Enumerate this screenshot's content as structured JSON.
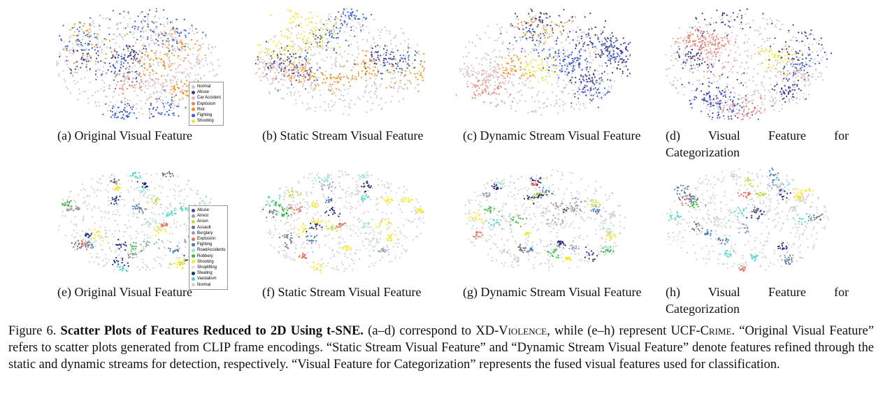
{
  "rows": [
    {
      "legend": [
        {
          "name": "Normal",
          "color": "#c8c8c8"
        },
        {
          "name": "Abuse",
          "color": "#3b3b8f"
        },
        {
          "name": "Car Accident",
          "color": "#e8b8b8"
        },
        {
          "name": "Explosion",
          "color": "#f07f70"
        },
        {
          "name": "Riot",
          "color": "#f5901a"
        },
        {
          "name": "Fighting",
          "color": "#3a5fd0"
        },
        {
          "name": "Shooting",
          "color": "#f5e51c"
        }
      ],
      "panels": [
        "(a) Original Visual Feature",
        "(b) Static Stream Visual Feature",
        "(c) Dynamic Stream Visual Feature",
        "(d) Visual Feature for Categorization"
      ]
    },
    {
      "legend": [
        {
          "name": "Abuse",
          "color": "#3b4a9a"
        },
        {
          "name": "Arrest",
          "color": "#9a9a9a"
        },
        {
          "name": "Arson",
          "color": "#c8d83a"
        },
        {
          "name": "Assault",
          "color": "#6f6f6f"
        },
        {
          "name": "Burglary",
          "color": "#8aa0b8"
        },
        {
          "name": "Explosion",
          "color": "#ee6a5a"
        },
        {
          "name": "Fighting",
          "color": "#4a7ab8"
        },
        {
          "name": "RoadAccidents",
          "color": "#9fe0d8"
        },
        {
          "name": "Robbery",
          "color": "#3cb83c"
        },
        {
          "name": "Shooting",
          "color": "#f8e81c"
        },
        {
          "name": "Shoplifting",
          "color": "#d8e8e0"
        },
        {
          "name": "Stealing",
          "color": "#1c2a80"
        },
        {
          "name": "Vandalism",
          "color": "#48d8c8"
        },
        {
          "name": "Normal",
          "color": "#d0d0d0"
        }
      ],
      "panels": [
        "(e) Original Visual Feature",
        "(f) Static Stream Visual Feature",
        "(g) Dynamic Stream Visual Feature",
        "(h) Visual Feature for Categorization"
      ]
    }
  ],
  "caption": {
    "label": "Figure 6.",
    "title": "Scatter Plots of Features Reduced to 2D Using t-SNE.",
    "body": [
      {
        "text": " (a–d) correspond to "
      },
      {
        "text": "XD-Violence",
        "small_caps": true
      },
      {
        "text": ", while (e–h) represent "
      },
      {
        "text": "UCF-Crime",
        "small_caps": true
      },
      {
        "text": ". “Original Visual Feature” refers to scatter plots generated from CLIP frame encodings. “Static Stream Visual Feature” and “Dynamic Stream Visual Feature” denote features refined through the static and dynamic streams for detection, respectively. “Visual Feature for Categorization” represents the fused visual features used for classification."
      }
    ]
  }
}
